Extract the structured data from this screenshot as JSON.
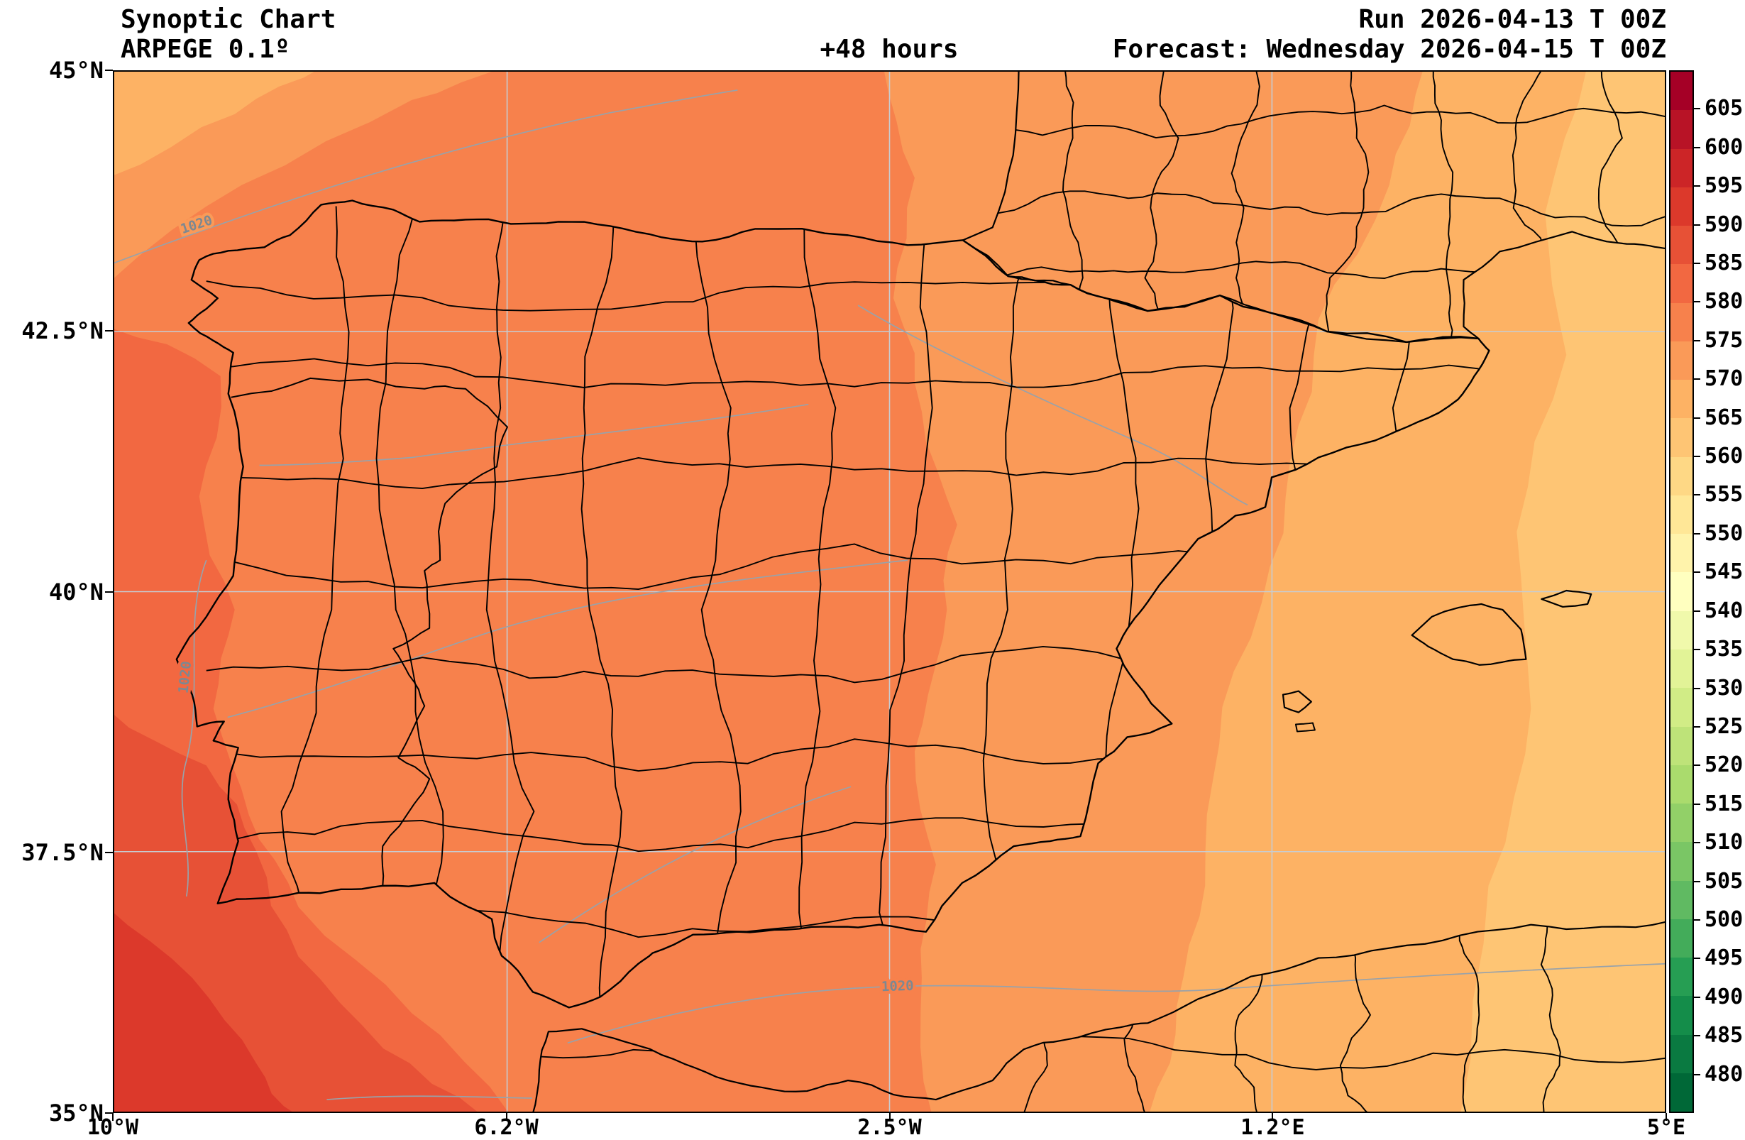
{
  "header": {
    "title": "Synoptic Chart",
    "model": "ARPEGE 0.1º",
    "lead_time": "+48 hours",
    "run": "Run 2026-04-13 T 00Z",
    "forecast": "Forecast: Wednesday 2026-04-15 T 00Z"
  },
  "axes": {
    "x_tick_labels": [
      "10°W",
      "6.2°W",
      "2.5°W",
      "1.2°E",
      "5°E"
    ],
    "y_tick_labels": [
      "45°N",
      "42.5°N",
      "40°N",
      "37.5°N",
      "35°N"
    ]
  },
  "colorbar": {
    "tick_labels": [
      "605",
      "600",
      "595",
      "590",
      "585",
      "580",
      "575",
      "570",
      "565",
      "560",
      "555",
      "550",
      "545",
      "540",
      "535",
      "530",
      "525",
      "520",
      "515",
      "510",
      "505",
      "500",
      "495",
      "490",
      "485",
      "480"
    ],
    "value_min": 475,
    "value_max": 610,
    "band_colors_bottom_to_top": [
      "#006837",
      "#0a7a41",
      "#148d4a",
      "#269e53",
      "#43ac5a",
      "#60ba62",
      "#7ac665",
      "#92d068",
      "#aadb6d",
      "#bee379",
      "#d1ec86",
      "#e2f397",
      "#f0f9ab",
      "#ffffbf",
      "#fff3ab",
      "#ffe797",
      "#fed885",
      "#fec574",
      "#fdb264",
      "#fa9a58",
      "#f7814c",
      "#f26841",
      "#e75136",
      "#dc392b",
      "#cc2527",
      "#b81326",
      "#a50026"
    ]
  },
  "map": {
    "isobar_labels": [
      "1020",
      "1020",
      "1020"
    ]
  },
  "chart_data": {
    "type": "heatmap",
    "title": "Synoptic Chart",
    "model": "ARPEGE 0.1º",
    "run": "Run 2026-04-13 T 00Z",
    "forecast_valid": "Wednesday 2026-04-15 T 00Z",
    "lead_hours": 48,
    "x_axis": {
      "ticks": [
        "10°W",
        "6.2°W",
        "2.5°W",
        "1.2°E",
        "5°E"
      ],
      "range": [
        "10°W",
        "5°E"
      ]
    },
    "y_axis": {
      "ticks": [
        "35°N",
        "37.5°N",
        "40°N",
        "42.5°N",
        "45°N"
      ],
      "range": [
        "35°N",
        "45°N"
      ]
    },
    "colorbar": {
      "ticks": [
        480,
        485,
        490,
        495,
        500,
        505,
        510,
        515,
        520,
        525,
        530,
        535,
        540,
        545,
        550,
        555,
        560,
        565,
        570,
        575,
        580,
        585,
        590,
        595,
        600,
        605
      ],
      "orientation": "vertical-right"
    },
    "isobars": [
      {
        "label": "1020",
        "location": "northwest corner, Atlantic"
      },
      {
        "label": "1020",
        "location": "west of Portugal coast"
      },
      {
        "label": "1020",
        "location": "south, along Alboran/Algerian coast"
      }
    ],
    "filled_field_bands": [
      {
        "value_range": "590-595",
        "color": "#dc392b",
        "region": "far southwest corner (Atlantic)"
      },
      {
        "value_range": "585-590",
        "color": "#e75136",
        "region": "southwest Atlantic off Portugal/Gulf of Cadiz"
      },
      {
        "value_range": "580-585",
        "color": "#f26841",
        "region": "western edge along Portugal"
      },
      {
        "value_range": "575-580",
        "color": "#f7814c",
        "region": "most of the Iberian Peninsula"
      },
      {
        "value_range": "570-575",
        "color": "#fa9a58",
        "region": "eastern Spain and outer northwest corner"
      },
      {
        "value_range": "565-570",
        "color": "#fdb264",
        "region": "Mediterranean coast, Catalonia, far northwest corner"
      },
      {
        "value_range": "560-565",
        "color": "#fec574",
        "region": "far east: Balearic Sea, southern France, Algerian coast"
      }
    ],
    "grid": true
  }
}
